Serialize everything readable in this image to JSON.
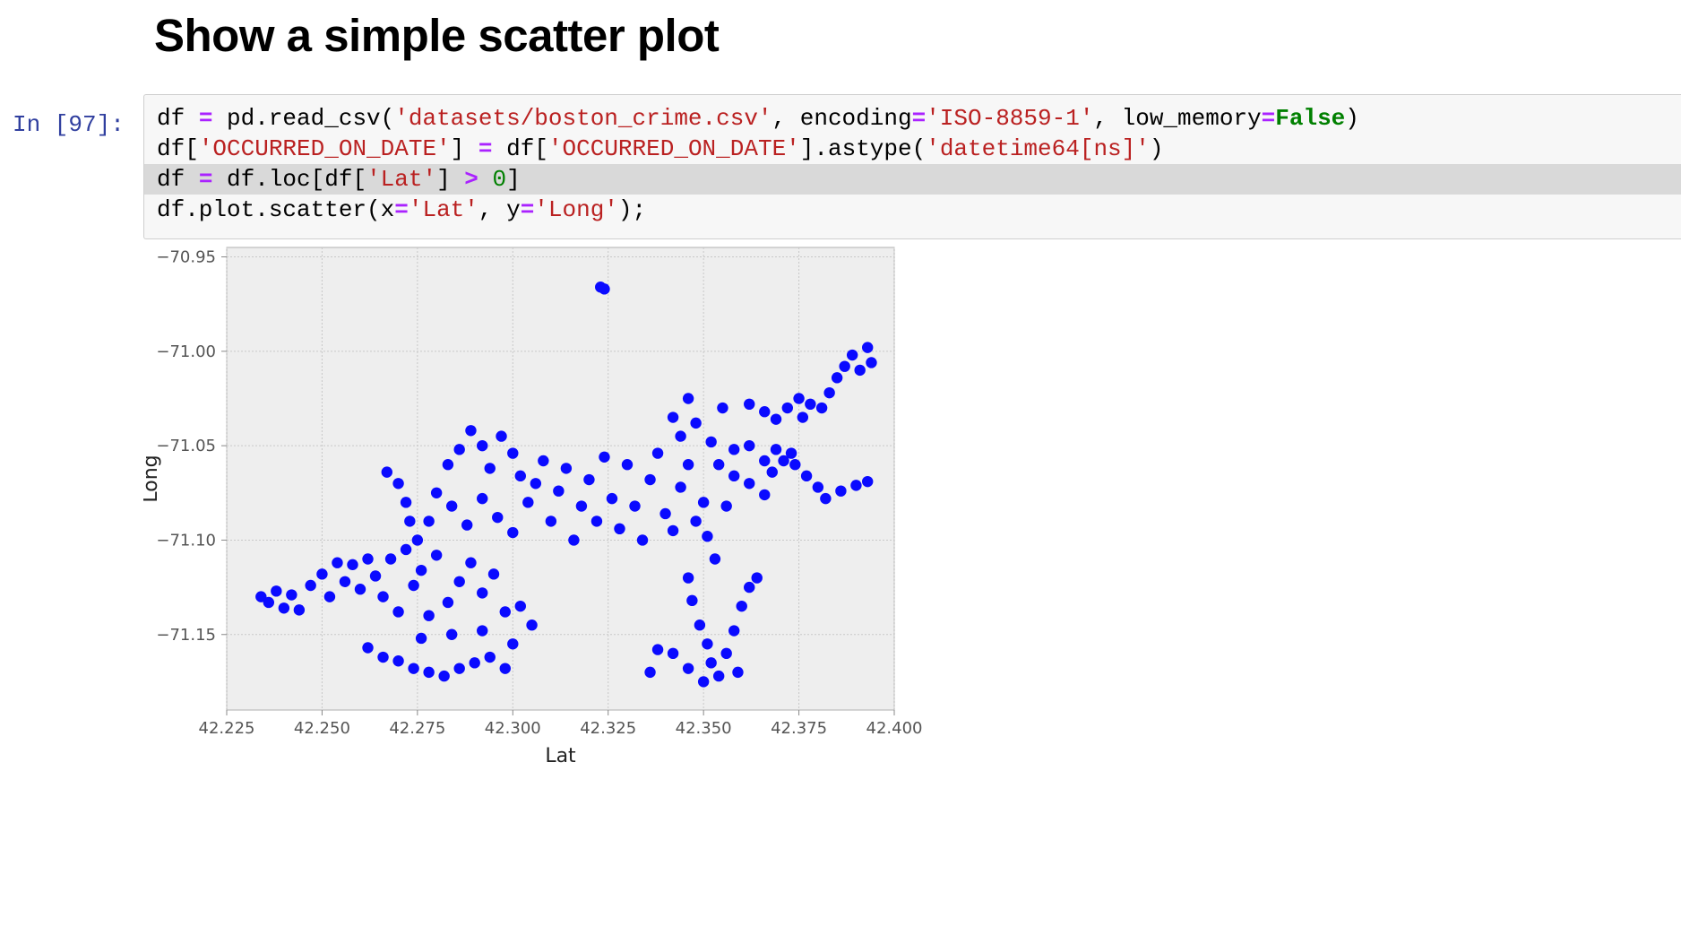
{
  "heading": "Show a simple scatter plot",
  "cell": {
    "prompt": "In [97]:",
    "lines": [
      [
        {
          "t": "df ",
          "c": "plain"
        },
        {
          "t": "=",
          "c": "op"
        },
        {
          "t": " pd.read_csv(",
          "c": "plain"
        },
        {
          "t": "'datasets/boston_crime.csv'",
          "c": "str"
        },
        {
          "t": ", encoding",
          "c": "plain"
        },
        {
          "t": "=",
          "c": "op"
        },
        {
          "t": "'ISO-8859-1'",
          "c": "str"
        },
        {
          "t": ", low_memory",
          "c": "plain"
        },
        {
          "t": "=",
          "c": "op"
        },
        {
          "t": "False",
          "c": "kw"
        },
        {
          "t": ")",
          "c": "plain"
        }
      ],
      [
        {
          "t": "df[",
          "c": "plain"
        },
        {
          "t": "'OCCURRED_ON_DATE'",
          "c": "str"
        },
        {
          "t": "] ",
          "c": "plain"
        },
        {
          "t": "=",
          "c": "op"
        },
        {
          "t": " df[",
          "c": "plain"
        },
        {
          "t": "'OCCURRED_ON_DATE'",
          "c": "str"
        },
        {
          "t": "].astype(",
          "c": "plain"
        },
        {
          "t": "'datetime64[ns]'",
          "c": "str"
        },
        {
          "t": ")",
          "c": "plain"
        }
      ],
      [
        {
          "t": "df ",
          "c": "plain"
        },
        {
          "t": "=",
          "c": "op"
        },
        {
          "t": " df.loc[df[",
          "c": "plain"
        },
        {
          "t": "'Lat'",
          "c": "str"
        },
        {
          "t": "] ",
          "c": "plain"
        },
        {
          "t": ">",
          "c": "op"
        },
        {
          "t": " ",
          "c": "plain"
        },
        {
          "t": "0",
          "c": "num"
        },
        {
          "t": "]",
          "c": "plain"
        }
      ],
      [
        {
          "t": "df.plot.scatter(x",
          "c": "plain"
        },
        {
          "t": "=",
          "c": "op"
        },
        {
          "t": "'Lat'",
          "c": "str"
        },
        {
          "t": ", y",
          "c": "plain"
        },
        {
          "t": "=",
          "c": "op"
        },
        {
          "t": "'Long'",
          "c": "str"
        },
        {
          "t": ");",
          "c": "plain"
        }
      ]
    ]
  },
  "colors": {
    "points": "#0a0aff",
    "plot_bg": "#eeeeee",
    "grid": "#c8c8c8"
  },
  "chart_data": {
    "type": "scatter",
    "title": "",
    "xlabel": "Lat",
    "ylabel": "Long",
    "xlim": [
      42.225,
      42.4
    ],
    "ylim": [
      -71.19,
      -70.945
    ],
    "xticks": [
      42.225,
      42.25,
      42.275,
      42.3,
      42.325,
      42.35,
      42.375,
      42.4
    ],
    "xtick_labels": [
      "42.225",
      "42.250",
      "42.275",
      "42.300",
      "42.325",
      "42.350",
      "42.375",
      "42.400"
    ],
    "yticks": [
      -70.95,
      -71.0,
      -71.05,
      -71.1,
      -71.15
    ],
    "ytick_labels": [
      "−70.95",
      "−71.00",
      "−71.05",
      "−71.10",
      "−71.15"
    ],
    "grid": true,
    "series": [
      {
        "points": [
          [
            42.234,
            -71.13
          ],
          [
            42.236,
            -71.133
          ],
          [
            42.238,
            -71.127
          ],
          [
            42.24,
            -71.136
          ],
          [
            42.242,
            -71.129
          ],
          [
            42.244,
            -71.137
          ],
          [
            42.247,
            -71.124
          ],
          [
            42.25,
            -71.118
          ],
          [
            42.252,
            -71.13
          ],
          [
            42.254,
            -71.112
          ],
          [
            42.256,
            -71.122
          ],
          [
            42.258,
            -71.113
          ],
          [
            42.26,
            -71.126
          ],
          [
            42.262,
            -71.11
          ],
          [
            42.264,
            -71.119
          ],
          [
            42.266,
            -71.13
          ],
          [
            42.268,
            -71.11
          ],
          [
            42.27,
            -71.138
          ],
          [
            42.272,
            -71.105
          ],
          [
            42.274,
            -71.124
          ],
          [
            42.276,
            -71.116
          ],
          [
            42.278,
            -71.14
          ],
          [
            42.28,
            -71.108
          ],
          [
            42.283,
            -71.133
          ],
          [
            42.286,
            -71.122
          ],
          [
            42.289,
            -71.112
          ],
          [
            42.292,
            -71.128
          ],
          [
            42.295,
            -71.118
          ],
          [
            42.298,
            -71.138
          ],
          [
            42.262,
            -71.157
          ],
          [
            42.266,
            -71.162
          ],
          [
            42.27,
            -71.164
          ],
          [
            42.274,
            -71.168
          ],
          [
            42.278,
            -71.17
          ],
          [
            42.282,
            -71.172
          ],
          [
            42.286,
            -71.168
          ],
          [
            42.29,
            -71.165
          ],
          [
            42.294,
            -71.162
          ],
          [
            42.298,
            -71.168
          ],
          [
            42.276,
            -71.152
          ],
          [
            42.284,
            -71.15
          ],
          [
            42.292,
            -71.148
          ],
          [
            42.3,
            -71.155
          ],
          [
            42.305,
            -71.145
          ],
          [
            42.302,
            -71.135
          ],
          [
            42.267,
            -71.064
          ],
          [
            42.27,
            -71.07
          ],
          [
            42.272,
            -71.08
          ],
          [
            42.273,
            -71.09
          ],
          [
            42.275,
            -71.1
          ],
          [
            42.278,
            -71.09
          ],
          [
            42.28,
            -71.075
          ],
          [
            42.283,
            -71.06
          ],
          [
            42.286,
            -71.052
          ],
          [
            42.289,
            -71.042
          ],
          [
            42.292,
            -71.05
          ],
          [
            42.294,
            -71.062
          ],
          [
            42.297,
            -71.045
          ],
          [
            42.3,
            -71.054
          ],
          [
            42.302,
            -71.066
          ],
          [
            42.284,
            -71.082
          ],
          [
            42.288,
            -71.092
          ],
          [
            42.292,
            -71.078
          ],
          [
            42.296,
            -71.088
          ],
          [
            42.3,
            -71.096
          ],
          [
            42.304,
            -71.08
          ],
          [
            42.306,
            -71.07
          ],
          [
            42.308,
            -71.058
          ],
          [
            42.31,
            -71.09
          ],
          [
            42.312,
            -71.074
          ],
          [
            42.314,
            -71.062
          ],
          [
            42.316,
            -71.1
          ],
          [
            42.318,
            -71.082
          ],
          [
            42.32,
            -71.068
          ],
          [
            42.322,
            -71.09
          ],
          [
            42.324,
            -71.056
          ],
          [
            42.326,
            -71.078
          ],
          [
            42.328,
            -71.094
          ],
          [
            42.33,
            -71.06
          ],
          [
            42.332,
            -71.082
          ],
          [
            42.334,
            -71.1
          ],
          [
            42.336,
            -71.068
          ],
          [
            42.338,
            -71.054
          ],
          [
            42.34,
            -71.086
          ],
          [
            42.342,
            -71.095
          ],
          [
            42.344,
            -71.072
          ],
          [
            42.346,
            -71.06
          ],
          [
            42.348,
            -71.09
          ],
          [
            42.35,
            -71.08
          ],
          [
            42.351,
            -71.098
          ],
          [
            42.342,
            -71.035
          ],
          [
            42.344,
            -71.045
          ],
          [
            42.346,
            -71.025
          ],
          [
            42.348,
            -71.038
          ],
          [
            42.352,
            -71.048
          ],
          [
            42.355,
            -71.03
          ],
          [
            42.358,
            -71.052
          ],
          [
            42.362,
            -71.05
          ],
          [
            42.366,
            -71.058
          ],
          [
            42.368,
            -71.064
          ],
          [
            42.354,
            -71.06
          ],
          [
            42.358,
            -71.066
          ],
          [
            42.362,
            -71.07
          ],
          [
            42.366,
            -71.076
          ],
          [
            42.356,
            -71.082
          ],
          [
            42.346,
            -71.12
          ],
          [
            42.347,
            -71.132
          ],
          [
            42.349,
            -71.145
          ],
          [
            42.351,
            -71.155
          ],
          [
            42.352,
            -71.165
          ],
          [
            42.354,
            -71.172
          ],
          [
            42.356,
            -71.16
          ],
          [
            42.358,
            -71.148
          ],
          [
            42.36,
            -71.135
          ],
          [
            42.362,
            -71.125
          ],
          [
            42.364,
            -71.12
          ],
          [
            42.353,
            -71.11
          ],
          [
            42.342,
            -71.16
          ],
          [
            42.338,
            -71.158
          ],
          [
            42.336,
            -71.17
          ],
          [
            42.346,
            -71.168
          ],
          [
            42.35,
            -71.175
          ],
          [
            42.359,
            -71.17
          ],
          [
            42.371,
            -71.058
          ],
          [
            42.374,
            -71.06
          ],
          [
            42.377,
            -71.066
          ],
          [
            42.38,
            -71.072
          ],
          [
            42.382,
            -71.078
          ],
          [
            42.386,
            -71.074
          ],
          [
            42.39,
            -71.071
          ],
          [
            42.393,
            -71.069
          ],
          [
            42.369,
            -71.052
          ],
          [
            42.373,
            -71.054
          ],
          [
            42.362,
            -71.028
          ],
          [
            42.366,
            -71.032
          ],
          [
            42.369,
            -71.036
          ],
          [
            42.372,
            -71.03
          ],
          [
            42.375,
            -71.025
          ],
          [
            42.378,
            -71.028
          ],
          [
            42.381,
            -71.03
          ],
          [
            42.383,
            -71.022
          ],
          [
            42.385,
            -71.014
          ],
          [
            42.387,
            -71.008
          ],
          [
            42.389,
            -71.002
          ],
          [
            42.391,
            -71.01
          ],
          [
            42.393,
            -70.998
          ],
          [
            42.394,
            -71.006
          ],
          [
            42.376,
            -71.035
          ],
          [
            42.323,
            -70.966
          ],
          [
            42.324,
            -70.967
          ]
        ]
      }
    ]
  }
}
